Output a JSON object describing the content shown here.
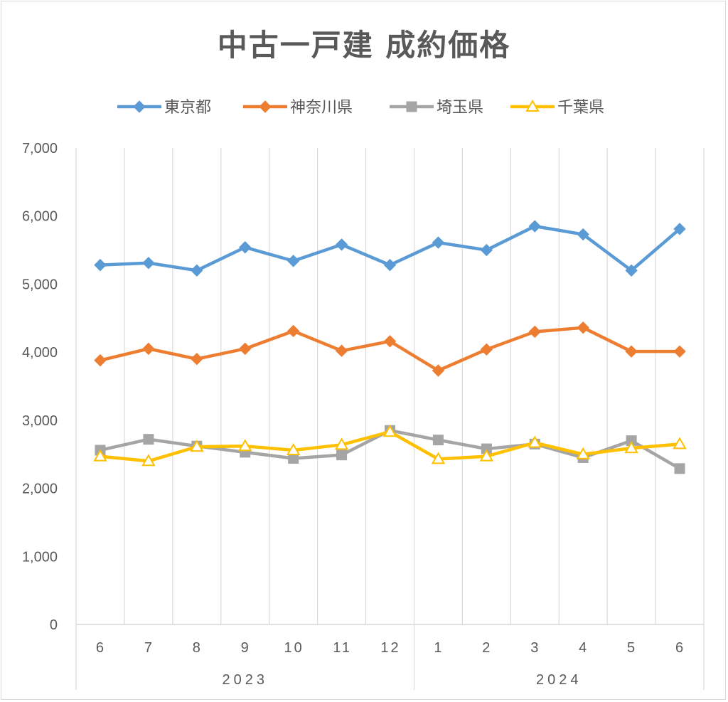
{
  "chart_data": {
    "type": "line",
    "title": "中古一戸建 成約価格",
    "x": [
      "6",
      "7",
      "8",
      "9",
      "10",
      "11",
      "12",
      "1",
      "2",
      "3",
      "4",
      "5",
      "6"
    ],
    "year_groups": [
      {
        "label": "2023",
        "count": 7
      },
      {
        "label": "2024",
        "count": 6
      }
    ],
    "ylim": [
      0,
      7000
    ],
    "yticks": [
      0,
      1000,
      2000,
      3000,
      4000,
      5000,
      6000,
      7000
    ],
    "ytick_labels": [
      "0",
      "1,000",
      "2,000",
      "3,000",
      "4,000",
      "5,000",
      "6,000",
      "7,000"
    ],
    "grid": "vertical",
    "legend_position": "top",
    "series": [
      {
        "name": "東京都",
        "color": "#5b9bd5",
        "marker": "diamond",
        "values": [
          5280,
          5310,
          5200,
          5540,
          5340,
          5580,
          5280,
          5610,
          5500,
          5850,
          5730,
          5200,
          5810
        ]
      },
      {
        "name": "神奈川県",
        "color": "#ed7d31",
        "marker": "diamond",
        "values": [
          3880,
          4050,
          3900,
          4050,
          4310,
          4020,
          4160,
          3730,
          4040,
          4300,
          4360,
          4010,
          4010
        ]
      },
      {
        "name": "埼玉県",
        "color": "#a5a5a5",
        "marker": "square",
        "values": [
          2560,
          2720,
          2620,
          2530,
          2440,
          2490,
          2850,
          2710,
          2580,
          2650,
          2450,
          2700,
          2290
        ]
      },
      {
        "name": "千葉県",
        "color": "#ffc000",
        "marker": "triangle",
        "values": [
          2470,
          2400,
          2610,
          2620,
          2560,
          2640,
          2830,
          2430,
          2470,
          2670,
          2500,
          2590,
          2650
        ]
      }
    ]
  }
}
